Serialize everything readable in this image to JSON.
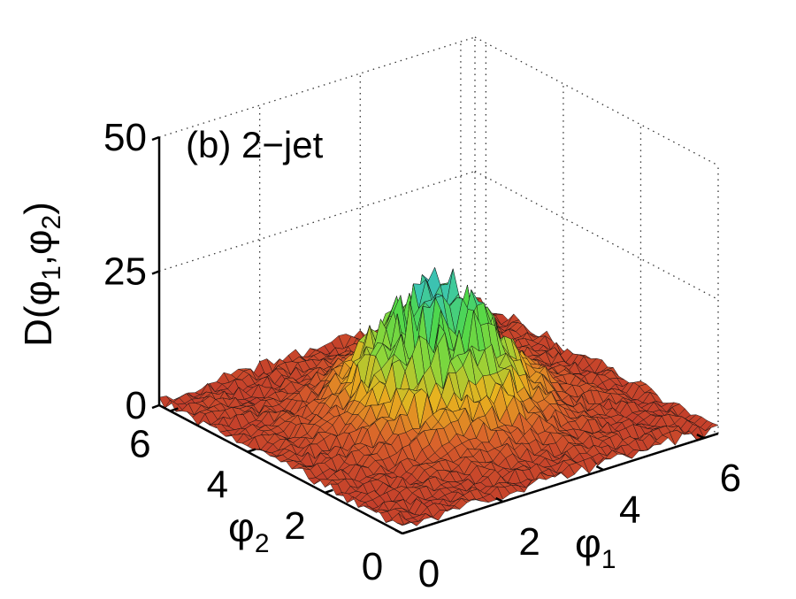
{
  "chart_data": {
    "type": "surface",
    "panel_label": "(b) 2−jet",
    "zlabel": {
      "main": "D(",
      "sym1": "φ",
      "sub1": "1",
      "sep": ",",
      "sym2": "φ",
      "sub2": "2",
      "close": ")"
    },
    "xlabel": {
      "sym": "φ",
      "sub": "1"
    },
    "ylabel": {
      "sym": "φ",
      "sub": "2"
    },
    "xlim": [
      0,
      6.283
    ],
    "ylim": [
      0,
      6.283
    ],
    "zlim": [
      0,
      50
    ],
    "x_ticks": [
      {
        "value": 0,
        "label": "0"
      },
      {
        "value": 2,
        "label": "2"
      },
      {
        "value": 4,
        "label": "4"
      },
      {
        "value": 6,
        "label": "6"
      }
    ],
    "y_ticks": [
      {
        "value": 0,
        "label": "0"
      },
      {
        "value": 2,
        "label": "2"
      },
      {
        "value": 4,
        "label": "4"
      },
      {
        "value": 6,
        "label": "6"
      }
    ],
    "z_ticks": [
      {
        "value": 0,
        "label": "0"
      },
      {
        "value": 25,
        "label": "25"
      },
      {
        "value": 50,
        "label": "50"
      }
    ],
    "grid": true,
    "colormap": [
      "#c0392b",
      "#d9622b",
      "#e8b21f",
      "#8fd63a",
      "#4fd84a",
      "#3cc6b0",
      "#2f5fd0"
    ],
    "surface": {
      "grid_points": 44,
      "background_level": 1.5,
      "background_noise": 3,
      "peak_center": [
        3.14,
        3.14
      ],
      "peak_height": 20,
      "peak_width": 1.0,
      "peak_noise": 7,
      "max_value": 29
    }
  }
}
